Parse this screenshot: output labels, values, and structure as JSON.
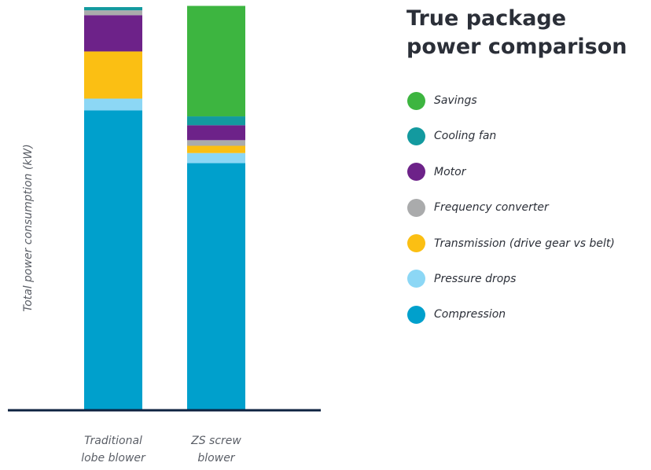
{
  "title_lines": [
    "True package",
    "power comparison"
  ],
  "chart_data": {
    "type": "bar",
    "stacked": true,
    "categories": [
      {
        "lines": [
          "Traditional",
          "lobe blower"
        ]
      },
      {
        "lines": [
          "ZS screw",
          "blower"
        ]
      }
    ],
    "ylabel": "Total power consumption (kW)",
    "ylim": [
      0,
      100
    ],
    "legend_placement": "right",
    "grid": false,
    "series": [
      {
        "name": "Compression",
        "color": "#00a0cc",
        "values": [
          74.2,
          61.1
        ]
      },
      {
        "name": "Pressure drops",
        "color": "#8cd7f5",
        "values": [
          2.9,
          2.5
        ]
      },
      {
        "name": "Transmission (drive gear vs belt)",
        "color": "#fbbf13",
        "values": [
          11.7,
          1.8
        ]
      },
      {
        "name": "Frequency converter",
        "color": "#aaabac",
        "values": [
          0,
          1.4
        ]
      },
      {
        "name": "Motor",
        "color": "#6d2289",
        "values": [
          9.0,
          3.7
        ]
      },
      {
        "name": "Cooling fan",
        "color": "#139a9f",
        "values": [
          0.8,
          2.2
        ]
      },
      {
        "name": "Savings",
        "color": "#3db540",
        "values": [
          0,
          27.4
        ]
      }
    ],
    "legend_order": [
      "Savings",
      "Cooling fan",
      "Motor",
      "Frequency converter",
      "Transmission (drive gear vs belt)",
      "Pressure drops",
      "Compression"
    ],
    "extra_bands": [
      {
        "category": 0,
        "after_series": "Motor",
        "color": "#aaabac",
        "value": 1.2
      }
    ]
  },
  "colors": {
    "axis": "#0d2240",
    "text": "#2b2f38",
    "muted": "#5a5e66"
  }
}
